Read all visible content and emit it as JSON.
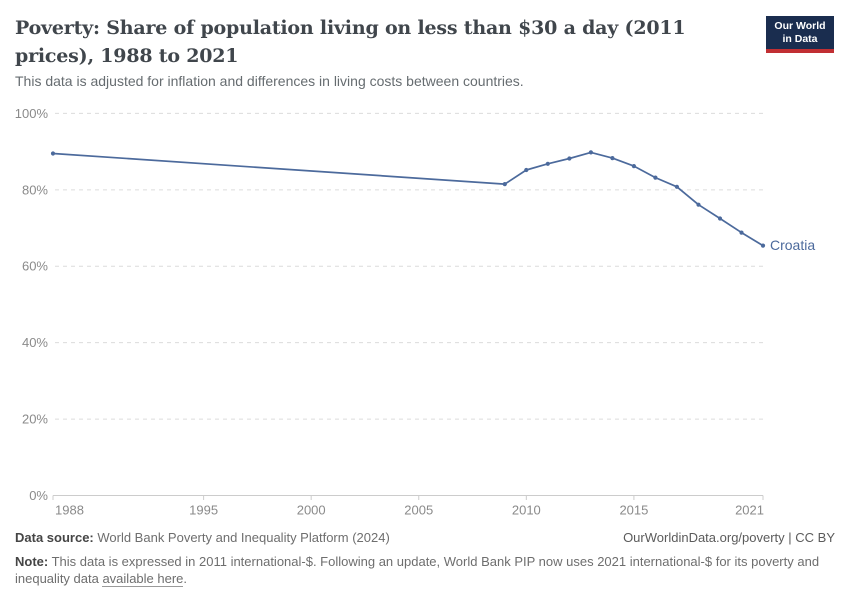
{
  "header": {
    "title": "Poverty: Share of population living on less than $30 a day (2011 prices), 1988 to 2021",
    "subtitle": "This data is adjusted for inflation and differences in living costs between countries.",
    "logo_line1": "Our World",
    "logo_line2": "in Data",
    "logo_colors": {
      "navy": "#1a2d4f",
      "red": "#c12f33"
    }
  },
  "chart_data": {
    "type": "line",
    "title": "Poverty: Share of population living on less than $30 a day (2011 prices), 1988 to 2021",
    "xlabel": "",
    "ylabel": "",
    "xlim": [
      1988,
      2021
    ],
    "ylim": [
      0,
      100
    ],
    "x_ticks": [
      1988,
      1995,
      2000,
      2005,
      2010,
      2015,
      2021
    ],
    "y_ticks": [
      0,
      20,
      40,
      60,
      80,
      100
    ],
    "y_tick_suffix": "%",
    "grid": "horizontal-dashed",
    "legend_position": "end-of-line-label",
    "series": [
      {
        "name": "Croatia",
        "color": "#4c6a9c",
        "points": [
          {
            "x": 1988,
            "y": 89.5
          },
          {
            "x": 2009,
            "y": 81.5
          },
          {
            "x": 2010,
            "y": 85.2
          },
          {
            "x": 2011,
            "y": 86.8
          },
          {
            "x": 2012,
            "y": 88.2
          },
          {
            "x": 2013,
            "y": 89.8
          },
          {
            "x": 2014,
            "y": 88.3
          },
          {
            "x": 2015,
            "y": 86.2
          },
          {
            "x": 2016,
            "y": 83.2
          },
          {
            "x": 2017,
            "y": 80.8
          },
          {
            "x": 2018,
            "y": 76.1
          },
          {
            "x": 2019,
            "y": 72.5
          },
          {
            "x": 2020,
            "y": 68.8
          },
          {
            "x": 2021,
            "y": 65.4
          }
        ]
      }
    ],
    "colors": {
      "grid": "#dcdcdc",
      "axis": "#cccccc",
      "tick_label": "#8a8a8a"
    }
  },
  "footer": {
    "data_source_label": "Data source:",
    "data_source_value": " World Bank Poverty and Inequality Platform (2024)",
    "attribution": "OurWorldinData.org/poverty | CC BY",
    "note_label": "Note:",
    "note_text": " This data is expressed in 2011 international-$. Following an update, World Bank PIP now uses 2021 international-$ for its poverty and inequality data ",
    "note_link": "available here",
    "note_suffix": "."
  }
}
